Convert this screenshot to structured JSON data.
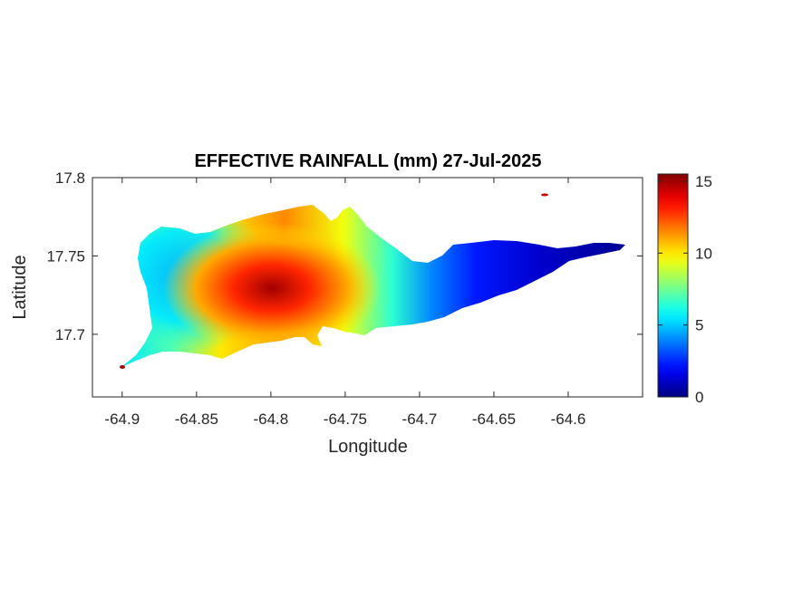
{
  "title": "EFFECTIVE RAINFALL (mm) 27-Jul-2025",
  "map": {
    "xlabel": "Longitude",
    "ylabel": "Latitude",
    "xlim": [
      -64.92,
      -64.55
    ],
    "ylim": [
      17.66,
      17.8
    ],
    "xticks": [
      -64.9,
      -64.85,
      -64.8,
      -64.75,
      -64.7,
      -64.65,
      -64.6
    ],
    "xtick_labels": [
      "-64.9",
      "-64.85",
      "-64.8",
      "-64.75",
      "-64.7",
      "-64.65",
      "-64.6"
    ],
    "yticks": [
      17.7,
      17.75,
      17.8
    ],
    "ytick_labels": [
      "17.7",
      "17.75",
      "17.8"
    ],
    "field": "effective rainfall (mm)",
    "field_description_visible": "island-shaped filled field, maximum near -64.80, 17.725 decreasing toward the east end"
  },
  "colorbar": {
    "colormap": "jet",
    "range": [
      0,
      15.5
    ],
    "ticks": [
      0,
      5,
      10,
      15
    ],
    "tick_labels": [
      "0",
      "5",
      "10",
      "15"
    ]
  }
}
